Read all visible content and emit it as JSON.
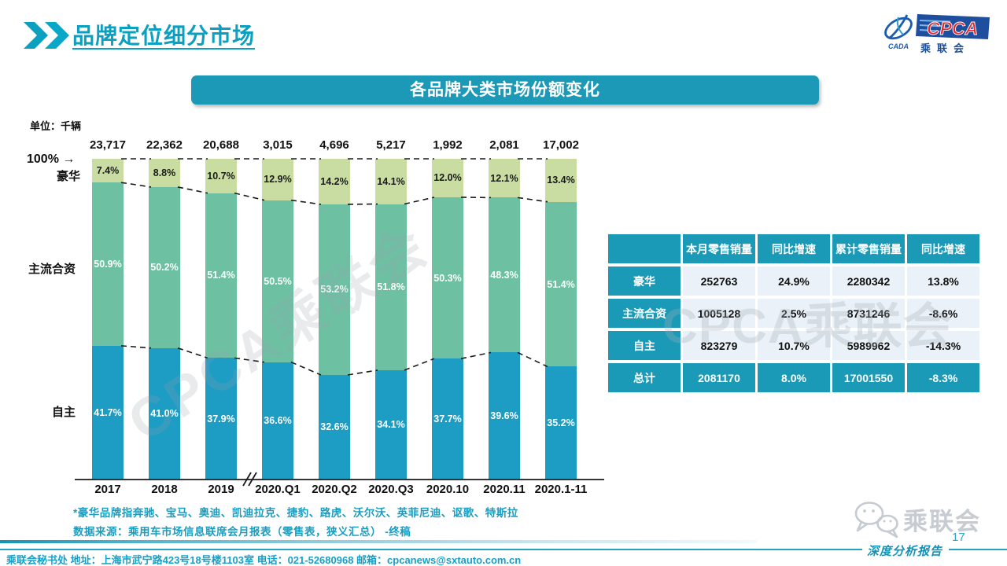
{
  "header": {
    "title": "品牌定位细分市场"
  },
  "logo": {
    "cpca": "CPCA",
    "cada": "CADA",
    "name_cn": "乘联会"
  },
  "banner": {
    "title": "各品牌大类市场份额变化"
  },
  "chart_data": {
    "type": "bar",
    "stacked": true,
    "title": "各品牌大类市场份额变化",
    "unit_label": "单位：千辆",
    "top_axis_label": "100% →",
    "categories": [
      "2017",
      "2018",
      "2019",
      "2020.Q1",
      "2020.Q2",
      "2020.Q3",
      "2020.10",
      "2020.11",
      "2020.1-11"
    ],
    "totals": [
      "23,717",
      "22,362",
      "20,688",
      "3,015",
      "4,696",
      "5,217",
      "1,992",
      "2,081",
      "17,002"
    ],
    "series": [
      {
        "name": "豪华",
        "color": "#c9dda2",
        "label_color": "#1a1a1a",
        "values": [
          7.4,
          8.8,
          10.7,
          12.9,
          14.2,
          14.1,
          12.0,
          12.1,
          13.4
        ]
      },
      {
        "name": "主流合资",
        "color": "#6ec0a3",
        "label_color": "#ffffff",
        "values": [
          50.9,
          50.2,
          51.4,
          50.5,
          53.2,
          51.8,
          50.3,
          48.3,
          51.4
        ]
      },
      {
        "name": "自主",
        "color": "#1d9cc4",
        "label_color": "#ffffff",
        "values": [
          41.7,
          41.0,
          37.9,
          36.6,
          32.6,
          34.1,
          37.7,
          39.6,
          35.2
        ]
      }
    ],
    "ylim": [
      0,
      100
    ],
    "axis_break_after": "2019",
    "legend_position": "left",
    "grid": false
  },
  "table": {
    "headers": [
      "",
      "本月零售销量",
      "同比增速",
      "累计零售销量",
      "同比增速"
    ],
    "rows": [
      {
        "label": "豪华",
        "values": [
          "252763",
          "24.9%",
          "2280342",
          "13.8%"
        ],
        "highlight": false
      },
      {
        "label": "主流合资",
        "values": [
          "1005128",
          "2.5%",
          "8731246",
          "-8.6%"
        ],
        "highlight": false
      },
      {
        "label": "自主",
        "values": [
          "823279",
          "10.7%",
          "5989962",
          "-14.3%"
        ],
        "highlight": false
      },
      {
        "label": "总计",
        "values": [
          "2081170",
          "8.0%",
          "17001550",
          "-8.3%"
        ],
        "highlight": true
      }
    ]
  },
  "notes": {
    "luxury_note": "*豪华品牌指奔驰、宝马、奥迪、凯迪拉克、捷豹、路虎、沃尔沃、英菲尼迪、讴歌、特斯拉",
    "source_note": "数据来源：乘用车市场信息联席会月报表（零售表，狭义汇总）  -终稿"
  },
  "footer": {
    "contact": "乘联会秘书处   地址：上海市武宁路423号18号楼1103室   电话：021-52680968   邮箱：cpcanews@sxtauto.com.cn",
    "page_number": "17",
    "report_type": "深度分析报告",
    "wechat_label": "乘联会"
  },
  "watermark": {
    "text": "CPCA乘联会"
  },
  "colors": {
    "accent_teal": "#1b9ab8",
    "title_teal": "#0b9fc0",
    "table_cell_bg": "#eaf1f8",
    "dash_line": "#1a1a1a"
  }
}
